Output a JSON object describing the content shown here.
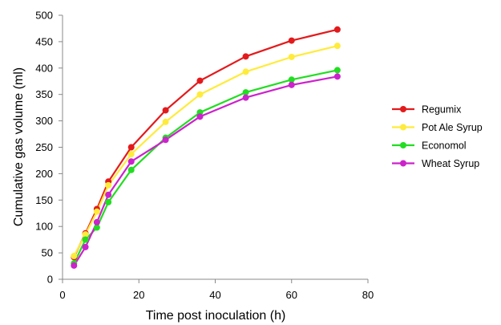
{
  "chart_data": {
    "type": "line",
    "title": "",
    "xlabel": "Time post inoculation (h)",
    "ylabel": "Cumulative gas volume (ml)",
    "xlim": [
      0,
      80
    ],
    "ylim": [
      0,
      500
    ],
    "xticks": [
      0,
      20,
      40,
      60,
      80
    ],
    "yticks": [
      0,
      50,
      100,
      150,
      200,
      250,
      300,
      350,
      400,
      450,
      500
    ],
    "grid": false,
    "legend_position": "right",
    "x": [
      3,
      6,
      9,
      12,
      18,
      27,
      36,
      48,
      60,
      72
    ],
    "series": [
      {
        "name": "Regumix",
        "color": "#e31a1c",
        "values": [
          42,
          87,
          133,
          185,
          250,
          320,
          376,
          422,
          452,
          473
        ]
      },
      {
        "name": "Pot Ale Syrup",
        "color": "#ffeb3b",
        "values": [
          44,
          85,
          128,
          178,
          237,
          298,
          350,
          393,
          421,
          442
        ]
      },
      {
        "name": "Economol",
        "color": "#22dd22",
        "values": [
          30,
          75,
          98,
          146,
          207,
          268,
          316,
          354,
          378,
          396
        ]
      },
      {
        "name": "Wheat Syrup",
        "color": "#cc22cc",
        "values": [
          26,
          61,
          108,
          160,
          223,
          264,
          308,
          344,
          368,
          384
        ]
      }
    ]
  }
}
